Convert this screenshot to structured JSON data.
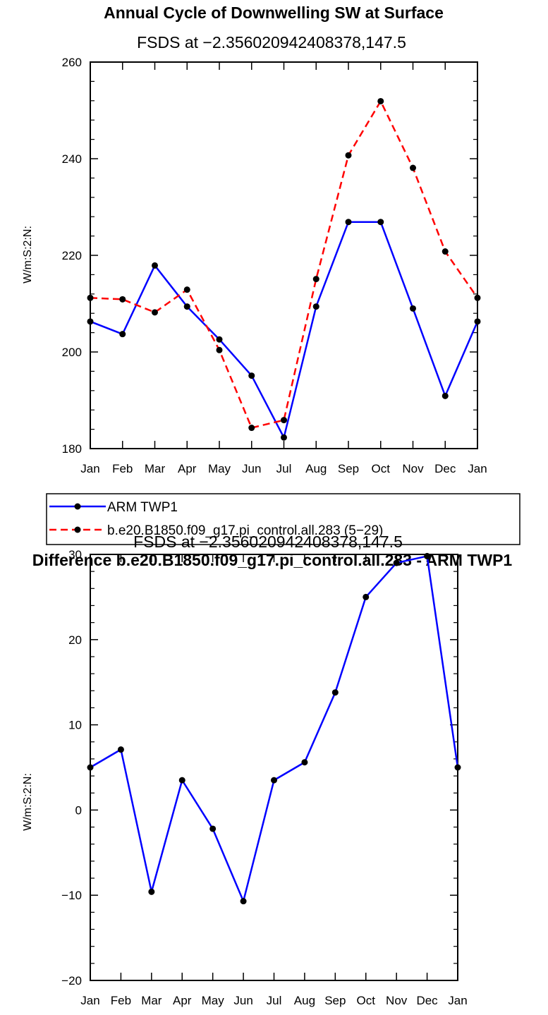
{
  "chart_data": [
    {
      "type": "line",
      "title": "Annual Cycle of Downwelling SW at Surface",
      "subtitle": "FSDS at −2.356020942408378,147.5",
      "xlabel": "",
      "ylabel": "W/m:S:2:N:",
      "categories": [
        "Jan",
        "Feb",
        "Mar",
        "Apr",
        "May",
        "Jun",
        "Jul",
        "Aug",
        "Sep",
        "Oct",
        "Nov",
        "Dec",
        "Jan"
      ],
      "ylim": [
        180,
        260
      ],
      "yticks": [
        180,
        200,
        220,
        240,
        260
      ],
      "ytick_labels": [
        "180",
        "200",
        "220",
        "240",
        "260"
      ],
      "series": [
        {
          "name": "ARM TWP1",
          "color": "#0000ff",
          "dash": "solid",
          "values": [
            206.3,
            203.7,
            217.9,
            209.4,
            202.6,
            195.1,
            182.3,
            209.4,
            226.9,
            226.9,
            209.0,
            190.9,
            206.3
          ]
        },
        {
          "name": "b.e20.B1850.f09_g17.pi_control.all.283 (5−29)",
          "color": "#ff0000",
          "dash": "dashed",
          "values": [
            211.2,
            210.9,
            208.2,
            212.9,
            200.4,
            184.3,
            185.9,
            215.1,
            240.7,
            251.9,
            238.1,
            220.8,
            211.2
          ]
        }
      ]
    },
    {
      "type": "line",
      "title": "Difference b.e20.B1850.f09_g17.pi_control.all.283 - ARM TWP1",
      "subtitle": "FSDS at −2.356020942408378,147.5",
      "xlabel": "",
      "ylabel": "W/m:S:2:N:",
      "categories": [
        "Jan",
        "Feb",
        "Mar",
        "Apr",
        "May",
        "Jun",
        "Jul",
        "Aug",
        "Sep",
        "Oct",
        "Nov",
        "Dec",
        "Jan"
      ],
      "ylim": [
        -20,
        30
      ],
      "yticks": [
        -20,
        -10,
        0,
        10,
        20,
        30
      ],
      "ytick_labels": [
        "−20",
        "−10",
        "0",
        "10",
        "20",
        "30"
      ],
      "series": [
        {
          "name": "Difference",
          "color": "#0000ff",
          "dash": "solid",
          "values": [
            5.0,
            7.1,
            -9.6,
            3.5,
            -2.2,
            -10.7,
            3.5,
            5.6,
            13.8,
            25.0,
            29.0,
            29.8,
            5.0
          ]
        }
      ]
    }
  ],
  "colors": {
    "marker": "#000000",
    "axis": "#000000"
  }
}
